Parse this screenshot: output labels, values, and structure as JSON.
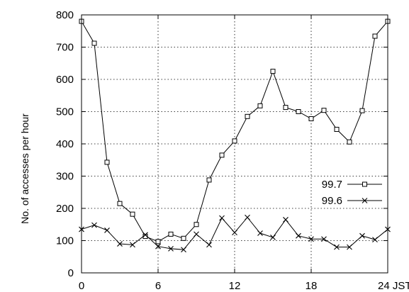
{
  "chart_data": {
    "type": "line",
    "ylabel": "No. of accesses per hour",
    "xlim": [
      0,
      24
    ],
    "ylim": [
      0,
      800
    ],
    "x_ticks": [
      {
        "value": 0,
        "label": "0"
      },
      {
        "value": 6,
        "label": "6"
      },
      {
        "value": 12,
        "label": "12"
      },
      {
        "value": 18,
        "label": "18"
      },
      {
        "value": 24,
        "label": "24 JST"
      }
    ],
    "y_ticks": [
      {
        "value": 0,
        "label": "0"
      },
      {
        "value": 100,
        "label": "100"
      },
      {
        "value": 200,
        "label": "200"
      },
      {
        "value": 300,
        "label": "300"
      },
      {
        "value": 400,
        "label": "400"
      },
      {
        "value": 500,
        "label": "500"
      },
      {
        "value": 600,
        "label": "600"
      },
      {
        "value": 700,
        "label": "700"
      },
      {
        "value": 800,
        "label": "800"
      }
    ],
    "grid": true,
    "legend_position": "right",
    "x": [
      0,
      1,
      2,
      3,
      4,
      5,
      6,
      7,
      8,
      9,
      10,
      11,
      12,
      13,
      14,
      15,
      16,
      17,
      18,
      19,
      20,
      21,
      22,
      23,
      24
    ],
    "series": [
      {
        "name": "99.7",
        "marker": "square",
        "values": [
          780,
          712,
          343,
          215,
          182,
          113,
          97,
          120,
          107,
          150,
          288,
          365,
          409,
          485,
          518,
          625,
          513,
          500,
          478,
          504,
          445,
          406,
          503,
          734,
          780
        ]
      },
      {
        "name": "99.6",
        "marker": "x",
        "values": [
          135,
          148,
          132,
          90,
          87,
          118,
          82,
          75,
          72,
          120,
          87,
          170,
          125,
          172,
          123,
          110,
          165,
          115,
          105,
          105,
          80,
          80,
          115,
          103,
          135
        ]
      }
    ]
  }
}
